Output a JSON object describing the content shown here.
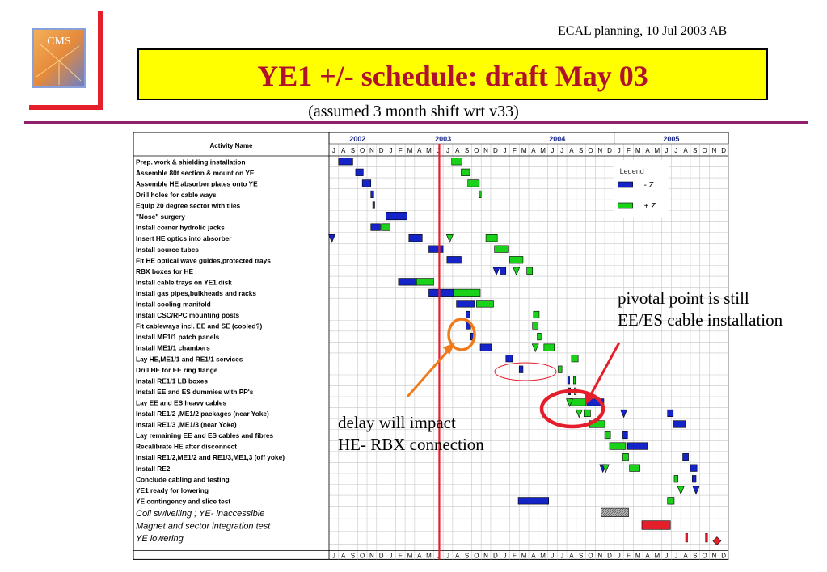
{
  "header": {
    "note": "ECAL planning, 10 Jul  2003 AB",
    "title": "YE1 +/-  schedule: draft May 03",
    "subtitle": "(assumed 3 month shift wrt v33)",
    "logo_text": "CMS"
  },
  "colors": {
    "minus_z": "#1424c8",
    "plus_z": "#19d219",
    "today_line": "#e41e2b",
    "grey_bar": "#9a9a9a",
    "red_bar": "#e41e2b",
    "callout_orange": "#f07a19",
    "callout_red": "#e41e2b"
  },
  "callouts": {
    "pivotal": [
      "pivotal point is still",
      "EE/ES cable installation"
    ],
    "delay": [
      "delay will impact",
      "HE- RBX connection"
    ]
  },
  "chart_data": {
    "type": "gantt",
    "activity_header": "Activity Name",
    "years": [
      {
        "label": "2002",
        "start": 0,
        "end": 6
      },
      {
        "label": "2003",
        "start": 6,
        "end": 18
      },
      {
        "label": "2004",
        "start": 18,
        "end": 30
      },
      {
        "label": "2005",
        "start": 30,
        "end": 42
      }
    ],
    "months": [
      "J",
      "A",
      "S",
      "O",
      "N",
      "D",
      "J",
      "F",
      "M",
      "A",
      "M",
      "J",
      "J",
      "A",
      "S",
      "O",
      "N",
      "D",
      "J",
      "F",
      "M",
      "A",
      "M",
      "J",
      "J",
      "A",
      "S",
      "O",
      "N",
      "D",
      "J",
      "F",
      "M",
      "A",
      "M",
      "J",
      "J",
      "A",
      "S",
      "O",
      "N",
      "D"
    ],
    "time_unit": "months from Jul 2002",
    "today": 11.6,
    "legend": {
      "title": "Legend",
      "entries": [
        {
          "label": "- Z",
          "key": "minus"
        },
        {
          "label": "+ Z",
          "key": "plus"
        }
      ]
    },
    "activities": [
      {
        "name": "Prep. work & shielding installation",
        "bold": true,
        "bars": [
          {
            "s": 1.0,
            "e": 2.5,
            "c": "minus"
          },
          {
            "s": 12.9,
            "e": 14.0,
            "c": "plus"
          }
        ]
      },
      {
        "name": "Assemble 80t section & mount on YE",
        "bold": true,
        "bars": [
          {
            "s": 2.8,
            "e": 3.6,
            "c": "minus"
          },
          {
            "s": 13.9,
            "e": 14.8,
            "c": "plus"
          }
        ]
      },
      {
        "name": "Assemble HE absorber plates onto YE",
        "bold": true,
        "bars": [
          {
            "s": 3.5,
            "e": 4.4,
            "c": "minus"
          },
          {
            "s": 14.6,
            "e": 15.8,
            "c": "plus"
          }
        ]
      },
      {
        "name": "Drill holes for cable ways",
        "bold": true,
        "bars": [
          {
            "s": 4.4,
            "e": 4.7,
            "c": "minus"
          },
          {
            "s": 15.8,
            "e": 16.0,
            "c": "plus"
          }
        ]
      },
      {
        "name": "Equip 20 degree sector with tiles",
        "bold": true,
        "bars": [
          {
            "s": 4.6,
            "e": 4.8,
            "c": "minus"
          }
        ]
      },
      {
        "name": "\"Nose\" surgery",
        "bold": true,
        "bars": [
          {
            "s": 6.0,
            "e": 8.2,
            "c": "minus"
          }
        ]
      },
      {
        "name": "Install corner hydrolic jacks",
        "bold": true,
        "bars": [
          {
            "s": 4.4,
            "e": 5.4,
            "c": "minus"
          },
          {
            "s": 5.5,
            "e": 6.4,
            "c": "plus"
          }
        ]
      },
      {
        "name": "Insert HE optics into absorber",
        "bold": true,
        "bars": [
          {
            "s": 8.4,
            "e": 9.8,
            "c": "minus"
          },
          {
            "s": 16.5,
            "e": 17.7,
            "c": "plus"
          }
        ],
        "milestones": [
          {
            "t": 0.3,
            "c": "minus"
          },
          {
            "t": 12.7,
            "c": "plus"
          }
        ]
      },
      {
        "name": "Install source tubes",
        "bold": true,
        "bars": [
          {
            "s": 10.5,
            "e": 12.0,
            "c": "minus"
          },
          {
            "s": 17.4,
            "e": 18.9,
            "c": "plus"
          }
        ]
      },
      {
        "name": "Fit HE optical wave guides,protected trays",
        "bold": true,
        "bars": [
          {
            "s": 12.4,
            "e": 13.9,
            "c": "minus"
          },
          {
            "s": 19.0,
            "e": 20.4,
            "c": "plus"
          }
        ]
      },
      {
        "name": "RBX boxes for HE",
        "bold": true,
        "bars": [
          {
            "s": 18.0,
            "e": 18.6,
            "c": "minus"
          },
          {
            "s": 20.8,
            "e": 21.4,
            "c": "plus"
          }
        ],
        "milestones": [
          {
            "t": 17.6,
            "c": "minus"
          },
          {
            "t": 19.7,
            "c": "plus"
          }
        ]
      },
      {
        "name": "Install cable trays on YE1 disk",
        "bold": true,
        "bars": [
          {
            "s": 7.3,
            "e": 9.2,
            "c": "minus"
          },
          {
            "s": 9.2,
            "e": 11.0,
            "c": "plus"
          }
        ]
      },
      {
        "name": "Install gas pipes,bulkheads and racks",
        "bold": true,
        "bars": [
          {
            "s": 10.5,
            "e": 13.1,
            "c": "minus"
          },
          {
            "s": 13.1,
            "e": 15.9,
            "c": "plus"
          }
        ]
      },
      {
        "name": "Install cooling manifold",
        "bold": true,
        "bars": [
          {
            "s": 13.4,
            "e": 15.3,
            "c": "minus"
          },
          {
            "s": 15.5,
            "e": 17.3,
            "c": "plus"
          }
        ]
      },
      {
        "name": "Install CSC/RPC mounting posts",
        "bold": true,
        "bars": [
          {
            "s": 14.4,
            "e": 14.8,
            "c": "minus"
          },
          {
            "s": 21.5,
            "e": 22.1,
            "c": "plus"
          }
        ]
      },
      {
        "name": "Fit cableways incl. EE and SE (cooled?)",
        "bold": true,
        "bars": [
          {
            "s": 14.4,
            "e": 14.9,
            "c": "minus"
          },
          {
            "s": 21.4,
            "e": 22.0,
            "c": "plus"
          }
        ]
      },
      {
        "name": "Install ME1/1 patch panels",
        "bold": true,
        "bars": [
          {
            "s": 14.9,
            "e": 15.2,
            "c": "minus"
          },
          {
            "s": 21.9,
            "e": 22.3,
            "c": "plus"
          }
        ]
      },
      {
        "name": "Install ME1/1 chambers",
        "bold": true,
        "bars": [
          {
            "s": 15.9,
            "e": 17.1,
            "c": "minus"
          },
          {
            "s": 22.6,
            "e": 23.7,
            "c": "plus"
          }
        ],
        "milestones": [
          {
            "t": 21.7,
            "c": "plus"
          }
        ]
      },
      {
        "name": "Lay HE,ME1/1 and RE1/1 services",
        "bold": true,
        "bars": [
          {
            "s": 18.6,
            "e": 19.3,
            "c": "minus"
          },
          {
            "s": 25.5,
            "e": 26.2,
            "c": "plus"
          }
        ]
      },
      {
        "name": "Drill HE for EE ring flange",
        "bold": true,
        "bars": [
          {
            "s": 20.0,
            "e": 20.4,
            "c": "minus"
          },
          {
            "s": 24.1,
            "e": 24.5,
            "c": "plus"
          }
        ]
      },
      {
        "name": "Install RE1/1 LB boxes",
        "bold": true,
        "bars": [
          {
            "s": 25.1,
            "e": 25.3,
            "c": "minus"
          },
          {
            "s": 25.7,
            "e": 25.9,
            "c": "plus"
          }
        ]
      },
      {
        "name": "Install EE and ES dummies with PP's",
        "bold": true,
        "bars": [
          {
            "s": 25.2,
            "e": 25.4,
            "c": "minus"
          },
          {
            "s": 25.8,
            "e": 26.0,
            "c": "plus"
          }
        ]
      },
      {
        "name": "Lay EE and ES heavy cables",
        "bold": true,
        "bars": [
          {
            "s": 27.1,
            "e": 28.9,
            "c": "minus"
          },
          {
            "s": 25.3,
            "e": 27.0,
            "c": "plus"
          }
        ],
        "milestones": [
          {
            "t": 25.3,
            "c": "plus"
          }
        ]
      },
      {
        "name": "Install RE1/2 ,ME1/2 packages (near Yoke)",
        "bold": true,
        "bars": [
          {
            "s": 35.6,
            "e": 36.2,
            "c": "minus"
          },
          {
            "s": 26.9,
            "e": 27.5,
            "c": "plus"
          }
        ],
        "milestones": [
          {
            "t": 31.0,
            "c": "minus"
          },
          {
            "t": 26.3,
            "c": "plus"
          }
        ]
      },
      {
        "name": "Install RE1/3 ,ME1/3 (near Yoke)",
        "bold": true,
        "bars": [
          {
            "s": 36.2,
            "e": 37.5,
            "c": "minus"
          },
          {
            "s": 27.4,
            "e": 29.0,
            "c": "plus"
          }
        ]
      },
      {
        "name": "Lay remaining EE and ES cables and fibres",
        "bold": true,
        "bars": [
          {
            "s": 30.9,
            "e": 31.4,
            "c": "minus"
          },
          {
            "s": 29.0,
            "e": 29.6,
            "c": "plus"
          }
        ]
      },
      {
        "name": "Recalibrate HE after disconnect",
        "bold": true,
        "bars": [
          {
            "s": 31.4,
            "e": 33.5,
            "c": "minus"
          },
          {
            "s": 29.5,
            "e": 31.2,
            "c": "plus"
          }
        ]
      },
      {
        "name": "Install RE1/2,ME1/2 and RE1/3,ME1,3 (off yoke)",
        "bold": true,
        "bars": [
          {
            "s": 37.2,
            "e": 37.8,
            "c": "minus"
          },
          {
            "s": 30.9,
            "e": 31.5,
            "c": "plus"
          }
        ]
      },
      {
        "name": "Install RE2",
        "bold": true,
        "bars": [
          {
            "s": 38.0,
            "e": 38.7,
            "c": "minus"
          },
          {
            "s": 31.6,
            "e": 32.7,
            "c": "plus"
          }
        ],
        "milestones": [
          {
            "t": 28.8,
            "c": "minus"
          },
          {
            "t": 29.1,
            "c": "plus"
          }
        ]
      },
      {
        "name": "Conclude cabling and testing",
        "bold": true,
        "bars": [
          {
            "s": 38.2,
            "e": 38.6,
            "c": "minus"
          },
          {
            "s": 36.3,
            "e": 36.7,
            "c": "plus"
          }
        ]
      },
      {
        "name": "YE1 ready for lowering",
        "bold": true,
        "milestones": [
          {
            "t": 38.6,
            "c": "minus"
          },
          {
            "t": 37.0,
            "c": "plus"
          }
        ]
      },
      {
        "name": "YE contingency and slice test",
        "bold": true,
        "bars": [
          {
            "s": 19.9,
            "e": 23.1,
            "c": "minus"
          },
          {
            "s": 35.6,
            "e": 36.3,
            "c": "plus"
          }
        ]
      },
      {
        "name": "Coil swivelling ; YE- inaccessible",
        "italic": true,
        "tall": true,
        "bars": [
          {
            "s": 28.6,
            "e": 31.5,
            "c": "grey"
          }
        ]
      },
      {
        "name": "Magnet and sector integration test",
        "italic": true,
        "tall": true,
        "bars": [
          {
            "s": 32.9,
            "e": 35.9,
            "c": "red"
          }
        ]
      },
      {
        "name": "YE lowering",
        "italic": true,
        "tall": true,
        "bars": [
          {
            "s": 37.5,
            "e": 37.7,
            "c": "red"
          },
          {
            "s": 39.6,
            "e": 39.8,
            "c": "red"
          }
        ],
        "diamond": {
          "t": 40.8,
          "c": "red"
        }
      }
    ]
  }
}
